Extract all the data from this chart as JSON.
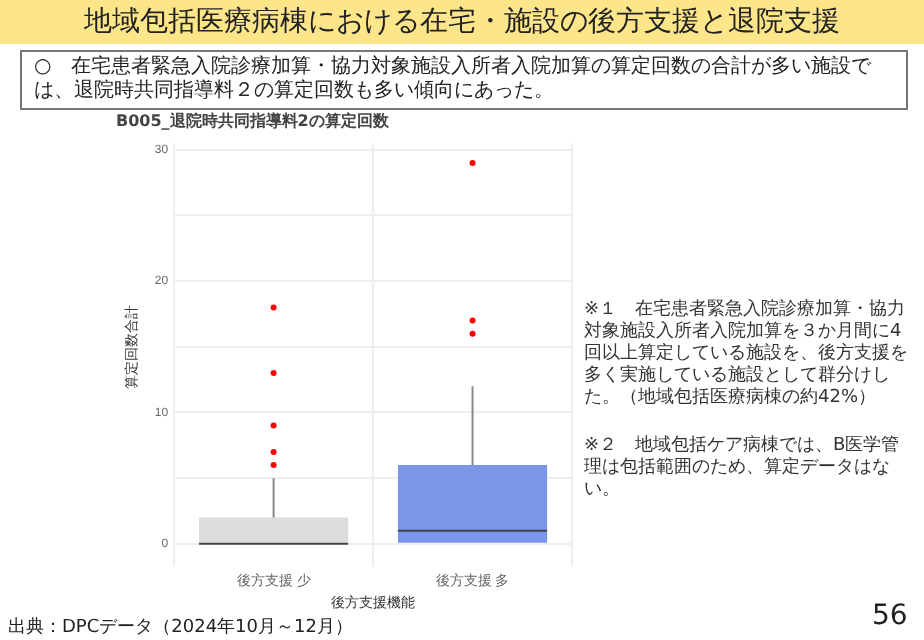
{
  "chart_data": {
    "type": "box",
    "title": "B005_退院時共同指導料2の算定回数",
    "subtitle": "地域包括医療病棟における在宅・施設の後方支援と退院支援",
    "annotations": [
      "○　在宅患者緊急入院診療加算・協力対象施設入所者入院加算の算定回数の合計が多い施設では、退院時共同指導料２の算定回数も多い傾向にあった。",
      "※１　在宅患者緊急入院診療加算・協力対象施設入所者入院加算を３か月間に4回以上算定している施設を、後方支援を多く実施している施設として群分けした。（地域包括医療病棟の約42%）",
      "※２　地域包括ケア病棟では、B医学管理は包括範囲のため、算定データはない。",
      "出典：DPCデータ（2024年10月～12月）",
      "56"
    ],
    "xlabel": "後方支援機能",
    "ylabel": "算定回数合計",
    "categories": [
      "後方支援 少",
      "後方支援 多"
    ],
    "colors": [
      "#dcdcdc",
      "#7b96e8"
    ],
    "boxes": [
      {
        "low": 0,
        "q1": 0,
        "median": 0,
        "q3": 2,
        "high": 5,
        "outliers": [
          6,
          7,
          9,
          13,
          18
        ]
      },
      {
        "low": 0,
        "q1": 0,
        "median": 1,
        "q3": 6,
        "high": 12,
        "outliers": [
          16,
          17,
          29
        ]
      }
    ],
    "ylim": [
      -0.5,
      30.5
    ],
    "yticks": [
      0,
      {
        "value": 5,
        "label": null
      },
      10,
      {
        "value": 15,
        "label": null
      },
      20,
      {
        "value": 25,
        "label": null
      },
      30
    ],
    "grid": true
  }
}
